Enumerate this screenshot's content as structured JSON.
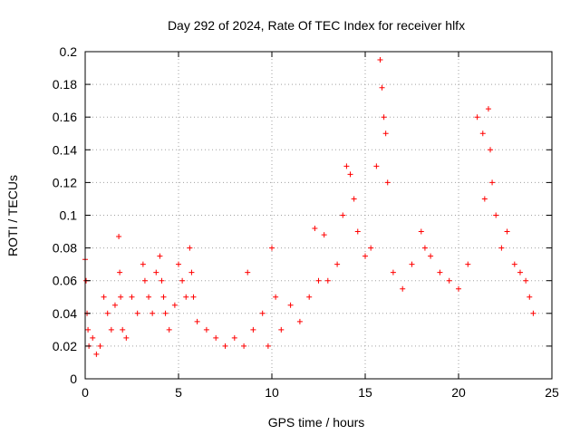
{
  "chart_data": {
    "type": "scatter",
    "title": "Day 292 of 2024, Rate Of TEC Index for receiver hlfx",
    "xlabel": "GPS time / hours",
    "ylabel": "ROTI / TECUs",
    "xlim": [
      0,
      25
    ],
    "ylim": [
      0,
      0.2
    ],
    "xticks": [
      0,
      5,
      10,
      15,
      20,
      25
    ],
    "yticks": [
      0,
      0.02,
      0.04,
      0.06,
      0.08,
      0.1,
      0.12,
      0.14,
      0.16,
      0.18,
      0.2
    ],
    "xtick_labels": [
      "0",
      "5",
      "10",
      "15",
      "20",
      "25"
    ],
    "ytick_labels": [
      "0",
      "0.02",
      "0.04",
      "0.06",
      "0.08",
      "0.1",
      "0.12",
      "0.14",
      "0.16",
      "0.18",
      "0.2"
    ],
    "grid": true,
    "marker": "+",
    "color": "#ff0000",
    "series": [
      {
        "x": [
          0.0,
          0.05,
          0.1,
          0.15,
          0.2,
          0.4,
          0.6,
          0.8,
          1.0,
          1.2,
          1.4,
          1.6,
          1.8,
          1.85,
          1.9,
          2.0,
          2.2,
          2.5,
          2.8,
          3.1,
          3.2,
          3.4,
          3.6,
          3.8,
          4.0,
          4.1,
          4.2,
          4.3,
          4.5,
          4.8,
          5.0,
          5.2,
          5.4,
          5.6,
          5.7,
          5.8,
          6.0,
          6.5,
          7.0,
          7.5,
          8.0,
          8.5,
          8.7,
          9.0,
          9.5,
          9.8,
          10.0,
          10.2,
          10.5,
          11.0,
          11.5,
          12.0,
          12.3,
          12.5,
          12.8,
          13.0,
          13.5,
          13.8,
          14.0,
          14.2,
          14.4,
          14.6,
          15.0,
          15.3,
          15.6,
          15.8,
          15.9,
          16.0,
          16.1,
          16.2,
          16.5,
          17.0,
          17.5,
          18.0,
          18.2,
          18.5,
          19.0,
          19.5,
          20.0,
          20.5,
          21.0,
          21.3,
          21.4,
          21.6,
          21.7,
          21.8,
          22.0,
          22.3,
          22.6,
          23.0,
          23.3,
          23.6,
          23.8,
          24.0
        ],
        "y": [
          0.073,
          0.06,
          0.04,
          0.03,
          0.02,
          0.025,
          0.015,
          0.02,
          0.05,
          0.04,
          0.03,
          0.045,
          0.087,
          0.065,
          0.05,
          0.03,
          0.025,
          0.05,
          0.04,
          0.07,
          0.06,
          0.05,
          0.04,
          0.065,
          0.075,
          0.06,
          0.05,
          0.04,
          0.03,
          0.045,
          0.07,
          0.06,
          0.05,
          0.08,
          0.065,
          0.05,
          0.035,
          0.03,
          0.025,
          0.02,
          0.025,
          0.02,
          0.065,
          0.03,
          0.04,
          0.02,
          0.08,
          0.05,
          0.03,
          0.045,
          0.035,
          0.05,
          0.092,
          0.06,
          0.088,
          0.06,
          0.07,
          0.1,
          0.13,
          0.125,
          0.11,
          0.09,
          0.075,
          0.08,
          0.13,
          0.195,
          0.178,
          0.16,
          0.15,
          0.12,
          0.065,
          0.055,
          0.07,
          0.09,
          0.08,
          0.075,
          0.065,
          0.06,
          0.055,
          0.07,
          0.16,
          0.15,
          0.11,
          0.165,
          0.14,
          0.12,
          0.1,
          0.08,
          0.09,
          0.07,
          0.065,
          0.06,
          0.05,
          0.04
        ]
      }
    ]
  }
}
